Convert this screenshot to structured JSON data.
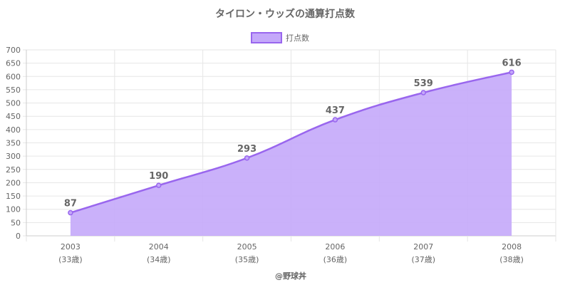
{
  "chart_data": {
    "type": "area",
    "title": "タイロン・ウッズの通算打点数",
    "categories": [
      "2003",
      "2004",
      "2005",
      "2006",
      "2007",
      "2008"
    ],
    "sub_labels": [
      "(33歳)",
      "(34歳)",
      "(35歳)",
      "(36歳)",
      "(37歳)",
      "(38歳)"
    ],
    "series": [
      {
        "name": "打点数",
        "values": [
          87,
          190,
          293,
          437,
          539,
          616
        ]
      }
    ],
    "ylim": [
      0,
      700
    ],
    "y_step": 50,
    "grid": true,
    "legend_position": "top",
    "credit": "@野球丼",
    "colors": {
      "line": "#9966ee",
      "fill": "#c4a8fa",
      "grid": "#e6e6e6",
      "axis": "#cccccc",
      "text": "#666666"
    }
  }
}
